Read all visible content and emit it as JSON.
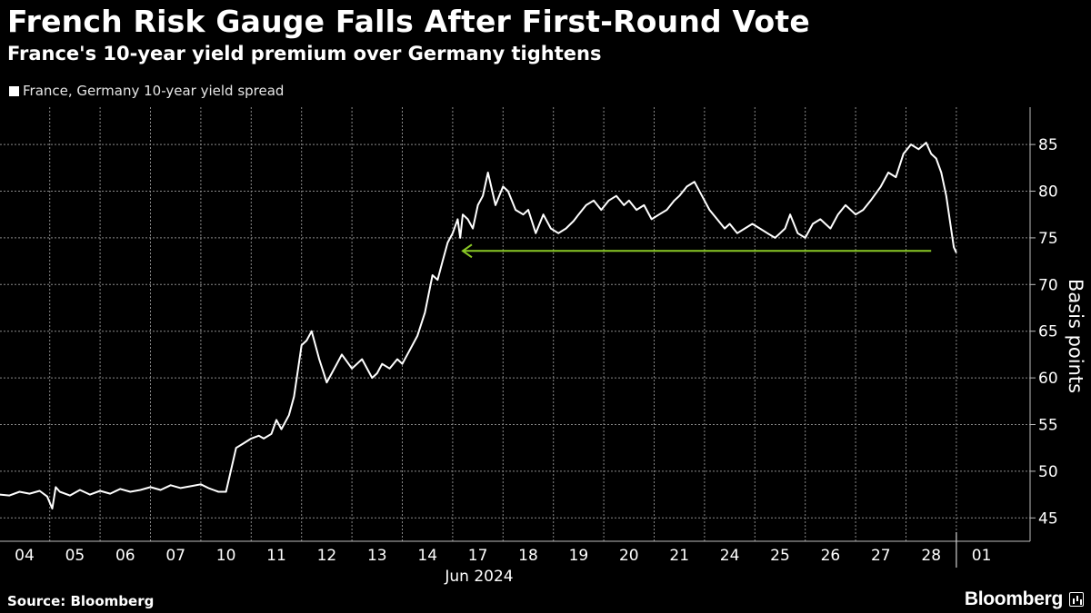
{
  "header": {
    "title": "French Risk Gauge Falls After First-Round Vote",
    "subtitle": "France's 10-year yield premium over Germany tightens"
  },
  "legend": {
    "label": "France, Germany 10-year yield spread",
    "color": "#ffffff"
  },
  "footer": {
    "source": "Source: Bloomberg",
    "brand": "Bloomberg"
  },
  "chart_data": {
    "type": "line",
    "title": "French Risk Gauge Falls After First-Round Vote",
    "subtitle": "France's 10-year yield premium over Germany tightens",
    "xlabel": "Jun 2024",
    "ylabel": "Basis points",
    "ylim": [
      42.5,
      89
    ],
    "yticks": [
      45,
      50,
      55,
      60,
      65,
      70,
      75,
      80,
      85
    ],
    "grid": true,
    "legend_position": "top-left",
    "categories": [
      "04",
      "05",
      "06",
      "07",
      "10",
      "11",
      "12",
      "13",
      "14",
      "17",
      "18",
      "19",
      "20",
      "21",
      "24",
      "25",
      "26",
      "27",
      "28",
      "01"
    ],
    "month_label": "Jun 2024",
    "annotation": {
      "type": "arrow",
      "color": "#8ac926",
      "x_from": 18.0,
      "x_to": 8.7,
      "y": 73.6
    },
    "series": [
      {
        "name": "France, Germany 10-year yield spread",
        "color": "#ffffff",
        "x": [
          -0.5,
          -0.3,
          -0.1,
          0.1,
          0.3,
          0.45,
          0.55,
          0.62,
          0.7,
          0.9,
          1.1,
          1.3,
          1.5,
          1.7,
          1.9,
          2.1,
          2.3,
          2.5,
          2.7,
          2.9,
          3.1,
          3.3,
          3.5,
          3.65,
          3.75,
          3.85,
          4.0,
          4.2,
          4.35,
          4.5,
          4.65,
          4.75,
          4.9,
          5.0,
          5.1,
          5.25,
          5.35,
          5.5,
          5.6,
          5.7,
          5.85,
          6.0,
          6.1,
          6.2,
          6.3,
          6.5,
          6.7,
          6.9,
          7.0,
          7.1,
          7.25,
          7.4,
          7.5,
          7.65,
          7.8,
          7.95,
          8.1,
          8.2,
          8.3,
          8.4,
          8.5,
          8.6,
          8.65,
          8.7,
          8.8,
          8.9,
          9.0,
          9.1,
          9.2,
          9.35,
          9.5,
          9.6,
          9.75,
          9.9,
          10.0,
          10.15,
          10.3,
          10.45,
          10.6,
          10.75,
          10.9,
          11.0,
          11.15,
          11.3,
          11.45,
          11.6,
          11.75,
          11.9,
          12.0,
          12.15,
          12.3,
          12.45,
          12.6,
          12.75,
          12.9,
          13.0,
          13.15,
          13.3,
          13.45,
          13.6,
          13.75,
          13.9,
          14.0,
          14.15,
          14.3,
          14.45,
          14.6,
          14.75,
          14.9,
          15.0,
          15.1,
          15.2,
          15.35,
          15.5,
          15.65,
          15.8,
          16.0,
          16.15,
          16.3,
          16.5,
          16.65,
          16.8,
          17.0,
          17.15,
          17.3,
          17.45,
          17.6,
          17.75,
          17.9,
          18.0,
          18.1,
          18.2,
          18.3,
          18.38,
          18.45,
          18.5
        ],
        "values": [
          47.5,
          47.4,
          47.8,
          47.6,
          47.9,
          47.3,
          46.0,
          48.3,
          47.8,
          47.4,
          48.0,
          47.5,
          47.9,
          47.6,
          48.1,
          47.8,
          48.0,
          48.3,
          48.0,
          48.5,
          48.2,
          48.4,
          48.6,
          48.2,
          48.0,
          47.8,
          47.8,
          52.5,
          53.0,
          53.5,
          53.8,
          53.5,
          54.0,
          55.5,
          54.5,
          56.0,
          58.0,
          63.5,
          64.0,
          65.0,
          62.0,
          59.5,
          60.5,
          61.5,
          62.5,
          61.0,
          62.0,
          60.0,
          60.5,
          61.5,
          61.0,
          62.0,
          61.5,
          63.0,
          64.5,
          67.0,
          71.0,
          70.5,
          72.5,
          74.5,
          75.5,
          77.0,
          75.0,
          77.5,
          77.0,
          76.0,
          78.5,
          79.5,
          82.0,
          78.5,
          80.5,
          80.0,
          78.0,
          77.5,
          78.0,
          75.5,
          77.5,
          76.0,
          75.5,
          76.0,
          76.8,
          77.5,
          78.5,
          79.0,
          78.0,
          79.0,
          79.5,
          78.5,
          79.0,
          78.0,
          78.5,
          77.0,
          77.5,
          78.0,
          79.0,
          79.5,
          80.5,
          81.0,
          79.5,
          78.0,
          77.0,
          76.0,
          76.5,
          75.5,
          76.0,
          76.5,
          76.0,
          75.5,
          75.0,
          75.5,
          76.0,
          77.5,
          75.5,
          75.0,
          76.5,
          77.0,
          76.0,
          77.5,
          78.5,
          77.5,
          78.0,
          79.0,
          80.5,
          82.0,
          81.5,
          84.0,
          85.0,
          84.5,
          85.2,
          84.0,
          83.5,
          82.0,
          79.5,
          76.5,
          74.0,
          73.4
        ]
      }
    ]
  }
}
